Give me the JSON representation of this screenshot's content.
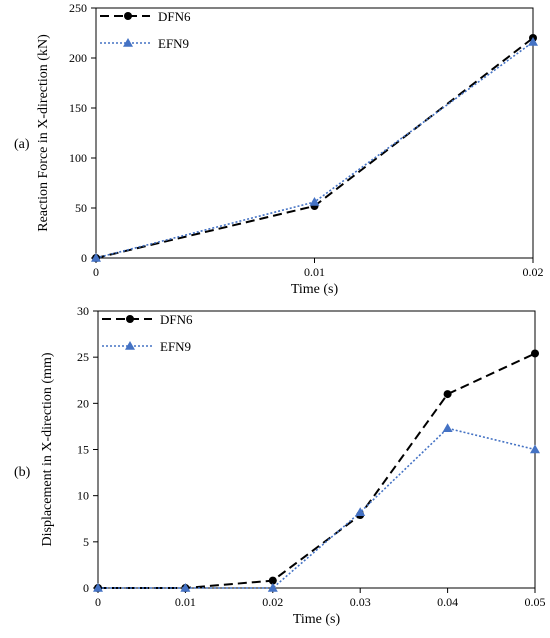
{
  "chart_data": [
    {
      "panel_label": "(a)",
      "type": "line",
      "title": "",
      "xlabel": "Time (s)",
      "ylabel": "Reaction Force in X-direction (kN)",
      "xlim": [
        0,
        0.02
      ],
      "ylim": [
        0,
        250
      ],
      "xticks": [
        0,
        0.01,
        0.02
      ],
      "xtick_labels": [
        "0",
        "0.01",
        "0.02"
      ],
      "yticks": [
        0,
        50,
        100,
        150,
        200,
        250
      ],
      "ytick_labels": [
        "0",
        "50",
        "100",
        "150",
        "200",
        "250"
      ],
      "grid": false,
      "legend": "top-left",
      "series": [
        {
          "name": "DFN6",
          "x": [
            0,
            0.01,
            0.02
          ],
          "y": [
            0,
            52,
            220
          ],
          "color": "#000000",
          "style": "dashed",
          "marker": "circle"
        },
        {
          "name": "EFN9",
          "x": [
            0,
            0.01,
            0.02
          ],
          "y": [
            0,
            56,
            216
          ],
          "color": "#4472C4",
          "style": "dotted",
          "marker": "triangle"
        }
      ]
    },
    {
      "panel_label": "(b)",
      "type": "line",
      "title": "",
      "xlabel": "Time (s)",
      "ylabel": "Displacement in X-direction (mm)",
      "xlim": [
        0,
        0.05
      ],
      "ylim": [
        0,
        30
      ],
      "xticks": [
        0,
        0.01,
        0.02,
        0.03,
        0.04,
        0.05
      ],
      "xtick_labels": [
        "0",
        "0.01",
        "0.02",
        "0.03",
        "0.04",
        "0.05"
      ],
      "yticks": [
        0,
        5,
        10,
        15,
        20,
        25,
        30
      ],
      "ytick_labels": [
        "0",
        "5",
        "10",
        "15",
        "20",
        "25",
        "30"
      ],
      "grid": false,
      "legend": "top-left",
      "series": [
        {
          "name": "DFN6",
          "x": [
            0,
            0.01,
            0.02,
            0.03,
            0.04,
            0.05
          ],
          "y": [
            0,
            0,
            0.8,
            7.9,
            21.0,
            25.4
          ],
          "color": "#000000",
          "style": "dashed",
          "marker": "circle"
        },
        {
          "name": "EFN9",
          "x": [
            0,
            0.01,
            0.02,
            0.03,
            0.04,
            0.05
          ],
          "y": [
            0,
            0,
            0,
            8.2,
            17.3,
            15.0
          ],
          "color": "#4472C4",
          "style": "dotted",
          "marker": "triangle"
        }
      ]
    }
  ]
}
